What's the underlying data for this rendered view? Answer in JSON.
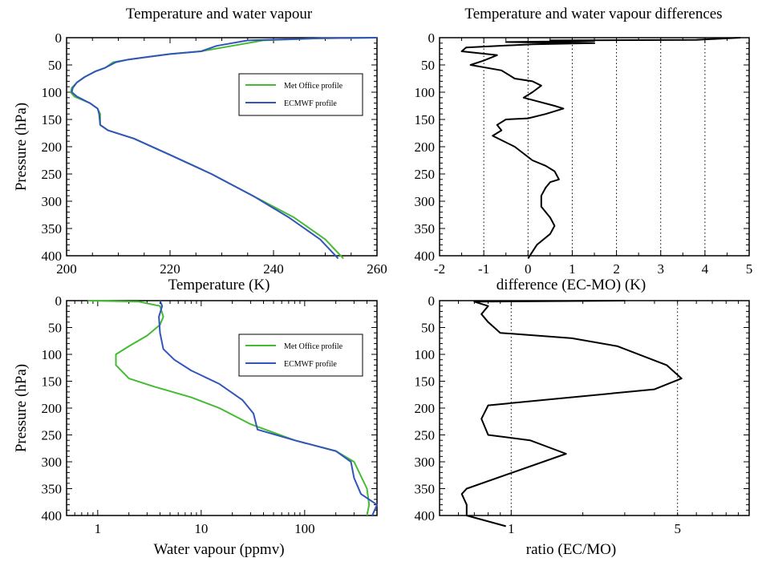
{
  "chart_data": [
    {
      "type": "line",
      "title": "Temperature and water vapour",
      "xlabel": "Temperature (K)",
      "ylabel": "Pressure (hPa)",
      "xlim": [
        200,
        260
      ],
      "ylim": [
        0,
        400
      ],
      "y_inverted": true,
      "x_ticks": [
        200,
        220,
        240,
        260
      ],
      "y_ticks": [
        0,
        50,
        100,
        150,
        200,
        250,
        300,
        350,
        400
      ],
      "legend": "top-right",
      "series": [
        {
          "name": "Met Office profile",
          "color": "#44bb33",
          "x": [
            260,
            249,
            238,
            232,
            226,
            220,
            216,
            212,
            209,
            207.5,
            205.5,
            203.5,
            202,
            201,
            200.8,
            201.5,
            204.5,
            206,
            206.5,
            206.5,
            208,
            213,
            220,
            228,
            236,
            244,
            250,
            253.5
          ],
          "y": [
            0,
            1,
            5,
            15,
            25,
            30,
            35,
            40,
            45,
            55,
            62,
            72,
            82,
            92,
            100,
            108,
            120,
            130,
            140,
            160,
            170,
            185,
            215,
            250,
            290,
            330,
            370,
            405
          ]
        },
        {
          "name": "ECMWF profile",
          "color": "#3355bb",
          "x": [
            260,
            249,
            235,
            229,
            226,
            220,
            216,
            212,
            209.5,
            207.5,
            205.5,
            203.5,
            202,
            201.2,
            201,
            202,
            204.5,
            206,
            206.3,
            206.5,
            208,
            213,
            220,
            228,
            236,
            243,
            249,
            252.5
          ],
          "y": [
            0,
            1,
            5,
            15,
            25,
            30,
            35,
            40,
            45,
            55,
            62,
            72,
            82,
            92,
            100,
            108,
            120,
            130,
            140,
            160,
            170,
            185,
            215,
            250,
            290,
            330,
            370,
            405
          ]
        }
      ]
    },
    {
      "type": "line",
      "title": "Temperature and water vapour differences",
      "xlabel": "difference (EC-MO) (K)",
      "ylabel": "",
      "xlim": [
        -2,
        5
      ],
      "ylim": [
        0,
        400
      ],
      "y_inverted": true,
      "x_ticks": [
        -2,
        -1,
        0,
        1,
        2,
        3,
        4,
        5
      ],
      "y_ticks": [
        0,
        50,
        100,
        150,
        200,
        250,
        300,
        350,
        400
      ],
      "vertical_dotted_lines": [
        -1,
        0,
        1,
        2,
        3,
        4
      ],
      "series": [
        {
          "name": "",
          "color": "#000000",
          "x": [
            4.8,
            4.3,
            3.8,
            0.5,
            1.5,
            -0.5,
            1.5,
            0.1,
            -1.4,
            -1.5,
            -0.7,
            -1.0,
            -1.3,
            -0.6,
            -0.3,
            0.1,
            0.3,
            0.1,
            -0.1,
            0.6,
            0.8,
            0.4,
            0.0,
            -0.5,
            -0.7,
            -0.6,
            -0.8,
            -0.3,
            0.1,
            0.4,
            0.6,
            0.7,
            0.5,
            0.4,
            0.3,
            0.3,
            0.5,
            0.6,
            0.5,
            0.2,
            0.0
          ],
          "y": [
            0,
            2,
            4,
            5,
            6,
            8,
            10,
            12,
            18,
            25,
            32,
            42,
            50,
            60,
            75,
            80,
            88,
            100,
            110,
            125,
            130,
            140,
            148,
            150,
            160,
            170,
            180,
            200,
            225,
            235,
            245,
            260,
            265,
            275,
            290,
            310,
            330,
            345,
            360,
            380,
            405
          ]
        }
      ]
    },
    {
      "type": "line",
      "title": "",
      "xlabel": "Water vapour (ppmv)",
      "ylabel": "Pressure (hPa)",
      "x_scale": "log",
      "xlim": [
        0.5,
        500
      ],
      "ylim": [
        0,
        400
      ],
      "y_inverted": true,
      "x_ticks": [
        1,
        10,
        100
      ],
      "y_ticks": [
        0,
        50,
        100,
        150,
        200,
        250,
        300,
        350,
        400
      ],
      "legend": "top-right",
      "series": [
        {
          "name": "Met Office profile",
          "color": "#44bb33",
          "x": [
            0.8,
            2.5,
            4.0,
            4.3,
            4.0,
            3.0,
            2.0,
            1.5,
            1.5,
            2.0,
            3.5,
            8.0,
            15,
            30,
            80,
            200,
            300,
            400,
            420,
            400
          ],
          "y": [
            0,
            2,
            10,
            30,
            45,
            65,
            85,
            100,
            120,
            145,
            160,
            180,
            200,
            230,
            260,
            280,
            300,
            350,
            380,
            400
          ]
        },
        {
          "name": "ECMWF profile",
          "color": "#3355bb",
          "x": [
            4.0,
            4.2,
            3.9,
            4.0,
            4.3,
            5.5,
            8.0,
            15,
            25,
            32,
            35,
            80,
            200,
            280,
            300,
            350,
            500,
            450
          ],
          "y": [
            0,
            10,
            30,
            60,
            90,
            110,
            130,
            155,
            185,
            210,
            240,
            260,
            280,
            300,
            330,
            360,
            380,
            400
          ]
        }
      ]
    },
    {
      "type": "line",
      "title": "",
      "xlabel": "ratio (EC/MO)",
      "ylabel": "",
      "x_scale": "log",
      "xlim": [
        0.5,
        10
      ],
      "ylim": [
        0,
        400
      ],
      "y_inverted": true,
      "x_ticks": [
        1,
        5
      ],
      "y_ticks": [
        0,
        50,
        100,
        150,
        200,
        250,
        300,
        350,
        400
      ],
      "vertical_dotted_lines": [
        1,
        5
      ],
      "series": [
        {
          "name": "",
          "color": "#000000",
          "x": [
            3.0,
            0.7,
            0.8,
            0.75,
            0.8,
            0.9,
            1.8,
            2.8,
            4.5,
            5.2,
            4.0,
            0.8,
            0.75,
            0.8,
            1.2,
            1.7,
            0.65,
            0.62,
            0.65,
            0.65,
            0.95
          ],
          "y": [
            0,
            2,
            10,
            25,
            40,
            60,
            70,
            85,
            120,
            145,
            165,
            195,
            220,
            250,
            260,
            285,
            350,
            360,
            380,
            400,
            420
          ]
        }
      ]
    }
  ]
}
